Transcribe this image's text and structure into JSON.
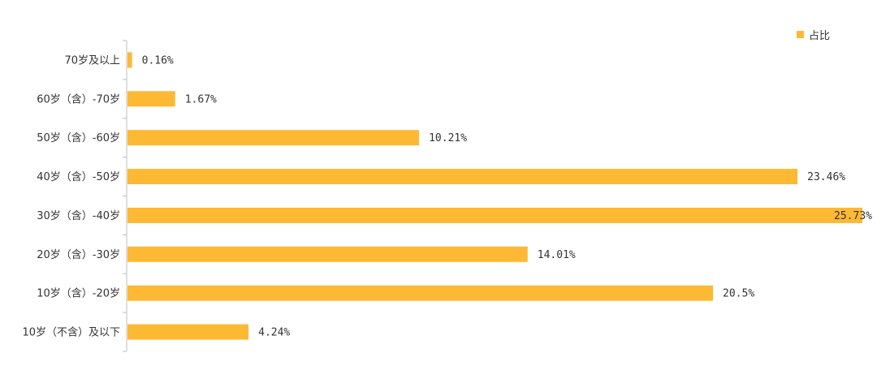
{
  "chart_data": {
    "type": "bar",
    "orientation": "horizontal",
    "categories": [
      "70岁及以上",
      "60岁（含）-70岁",
      "50岁（含）-60岁",
      "40岁（含）-50岁",
      "30岁（含）-40岁",
      "20岁（含）-30岁",
      "10岁（含）-20岁",
      "10岁（不含）及以下"
    ],
    "series": [
      {
        "name": "占比",
        "values": [
          0.16,
          1.67,
          10.21,
          23.46,
          25.73,
          14.01,
          20.5,
          4.24
        ],
        "labels": [
          "0.16%",
          "1.67%",
          "10.21%",
          "23.46%",
          "25.73%",
          "14.01%",
          "20.5%",
          "4.24%"
        ]
      }
    ],
    "legend_position": "top-right",
    "grid": false,
    "bar_color": "#FDB933",
    "axis_color": "#BFBFBF"
  }
}
